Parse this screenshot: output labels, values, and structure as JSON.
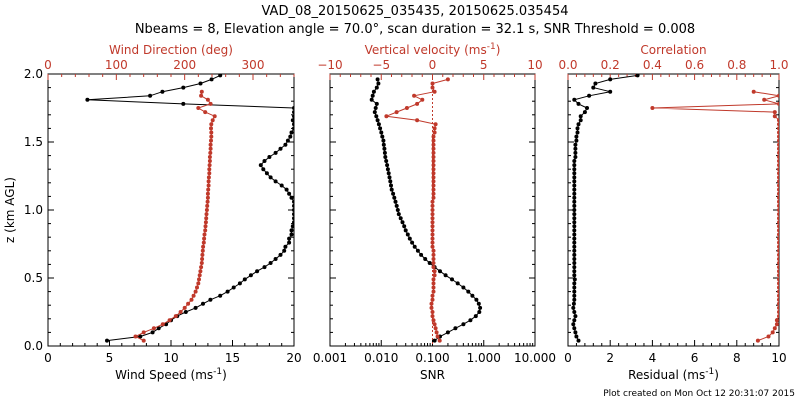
{
  "title": {
    "line1": "VAD_08_20150625_035435, 20150625.035454",
    "line2": "Nbeams = 8, Elevation angle = 70.0°, scan duration = 32.1 s, SNR Threshold = 0.008"
  },
  "footer": "Plot created on Mon Oct 12 20:31:07 2015",
  "colors": {
    "black": "#000000",
    "red": "#c0392b"
  },
  "chart_data": [
    {
      "type": "line",
      "ylabel": "z (km AGL)",
      "ylim": [
        0.0,
        2.0
      ],
      "yticks": [
        "0.0",
        "0.5",
        "1.0",
        "1.5",
        "2.0"
      ],
      "xlabel_bottom": "Wind Speed (ms",
      "xlabel_bottom_sup": "-1",
      "xlabel_bottom_end": ")",
      "xlim_bottom": [
        0,
        20
      ],
      "xticks_bottom": [
        "0",
        "5",
        "10",
        "15",
        "20"
      ],
      "xlabel_top": "Wind Direction (deg)",
      "xlim_top": [
        0,
        360
      ],
      "xticks_top": [
        "0",
        "100",
        "200",
        "300"
      ],
      "series": [
        {
          "axis": "bottom",
          "color": "#000000",
          "z": [
            0.04,
            0.07,
            0.1,
            0.13,
            0.16,
            0.19,
            0.22,
            0.25,
            0.28,
            0.31,
            0.34,
            0.37,
            0.4,
            0.43,
            0.46,
            0.49,
            0.52,
            0.55,
            0.58,
            0.61,
            0.64,
            0.67,
            0.7,
            0.73,
            0.76,
            0.79,
            0.82,
            0.85,
            0.88,
            0.91,
            0.94,
            0.97,
            1.0,
            1.03,
            1.06,
            1.09,
            1.12,
            1.15,
            1.18,
            1.21,
            1.24,
            1.27,
            1.3,
            1.33,
            1.36,
            1.39,
            1.42,
            1.45,
            1.48,
            1.51,
            1.54,
            1.57,
            1.6,
            1.63,
            1.66,
            1.69,
            1.72,
            1.75,
            1.78,
            1.81,
            1.84,
            1.87,
            1.9,
            1.93,
            1.96,
            1.99
          ],
          "values": [
            4.8,
            7.5,
            8.5,
            9.0,
            9.6,
            10.0,
            10.5,
            11.2,
            12.0,
            12.6,
            13.2,
            14.0,
            14.6,
            15.1,
            15.6,
            16.0,
            16.5,
            17.0,
            17.6,
            18.1,
            18.5,
            18.9,
            19.2,
            19.3,
            19.6,
            19.6,
            19.8,
            19.8,
            19.9,
            20.0,
            20.0,
            20.0,
            20.0,
            20.0,
            20.0,
            19.8,
            19.6,
            19.4,
            19.0,
            18.5,
            18.1,
            17.8,
            17.5,
            17.3,
            17.6,
            18.0,
            18.5,
            18.9,
            19.3,
            19.5,
            19.7,
            19.8,
            20.0,
            20.0,
            19.9,
            20.0,
            20.0,
            20.0,
            11.0,
            3.2,
            8.3,
            9.3,
            11.0,
            12.4,
            13.3,
            14.0
          ]
        },
        {
          "axis": "top",
          "color": "#c0392b",
          "z": [
            0.04,
            0.07,
            0.1,
            0.13,
            0.16,
            0.19,
            0.22,
            0.25,
            0.28,
            0.31,
            0.34,
            0.37,
            0.4,
            0.43,
            0.46,
            0.49,
            0.52,
            0.55,
            0.58,
            0.61,
            0.64,
            0.67,
            0.7,
            0.73,
            0.76,
            0.79,
            0.82,
            0.85,
            0.88,
            0.91,
            0.94,
            0.97,
            1.0,
            1.03,
            1.06,
            1.09,
            1.12,
            1.15,
            1.18,
            1.21,
            1.24,
            1.27,
            1.3,
            1.33,
            1.36,
            1.39,
            1.42,
            1.45,
            1.48,
            1.51,
            1.54,
            1.57,
            1.6,
            1.63,
            1.66,
            1.69,
            1.72,
            1.75,
            1.78,
            1.81,
            1.84,
            1.87
          ],
          "values": [
            140,
            128,
            140,
            155,
            168,
            178,
            187,
            194,
            200,
            205,
            210,
            213,
            216,
            218,
            220,
            221,
            222,
            223,
            224,
            225,
            225.5,
            226,
            226.5,
            227,
            228,
            228.5,
            229,
            230,
            230.5,
            231,
            231.5,
            232,
            232.5,
            233,
            233.5,
            234,
            234,
            234.5,
            235,
            235,
            235.5,
            236,
            236,
            236.5,
            237,
            237,
            237.5,
            238,
            238,
            238.5,
            239,
            239,
            238.5,
            239,
            241,
            244,
            230,
            220,
            238,
            234,
            224,
            225
          ]
        }
      ]
    },
    {
      "type": "line",
      "xlabel_bottom": "SNR",
      "xscale_bottom": "log",
      "xlim_bottom": [
        0.001,
        10.0
      ],
      "xticks_bottom": [
        "0.001",
        "0.010",
        "0.100",
        "1.000",
        "10.000"
      ],
      "xlabel_top": "Vertical velocity (ms",
      "xlabel_top_sup": "-1",
      "xlabel_top_end": ")",
      "xlim_top": [
        -10,
        10
      ],
      "xticks_top": [
        "−10",
        "−5",
        "0",
        "5",
        "10"
      ],
      "zero_line": 0,
      "ylim": [
        0.0,
        2.0
      ],
      "series": [
        {
          "axis": "bottom",
          "color": "#000000",
          "z": [
            0.04,
            0.07,
            0.1,
            0.13,
            0.16,
            0.19,
            0.22,
            0.25,
            0.28,
            0.31,
            0.34,
            0.37,
            0.4,
            0.43,
            0.46,
            0.49,
            0.52,
            0.55,
            0.58,
            0.61,
            0.64,
            0.67,
            0.7,
            0.73,
            0.76,
            0.79,
            0.82,
            0.85,
            0.88,
            0.91,
            0.94,
            0.97,
            1.0,
            1.03,
            1.06,
            1.09,
            1.12,
            1.15,
            1.18,
            1.21,
            1.24,
            1.27,
            1.3,
            1.33,
            1.36,
            1.39,
            1.42,
            1.45,
            1.48,
            1.51,
            1.54,
            1.57,
            1.6,
            1.63,
            1.66,
            1.69,
            1.72,
            1.75,
            1.78,
            1.81,
            1.84,
            1.87,
            1.9,
            1.93,
            1.96
          ],
          "values": [
            0.11,
            0.14,
            0.2,
            0.28,
            0.4,
            0.55,
            0.7,
            0.82,
            0.85,
            0.8,
            0.72,
            0.6,
            0.5,
            0.4,
            0.31,
            0.24,
            0.18,
            0.14,
            0.11,
            0.088,
            0.072,
            0.06,
            0.052,
            0.045,
            0.04,
            0.036,
            0.033,
            0.03,
            0.028,
            0.026,
            0.024,
            0.022,
            0.021,
            0.02,
            0.019,
            0.018,
            0.017,
            0.016,
            0.0155,
            0.015,
            0.0145,
            0.014,
            0.0135,
            0.013,
            0.0125,
            0.012,
            0.0118,
            0.0115,
            0.0112,
            0.011,
            0.0105,
            0.01,
            0.0095,
            0.009,
            0.0085,
            0.008,
            0.0075,
            0.0078,
            0.0082,
            0.0065,
            0.0068,
            0.0072,
            0.0082,
            0.0088,
            0.0085
          ]
        },
        {
          "axis": "top",
          "color": "#c0392b",
          "z": [
            0.04,
            0.07,
            0.1,
            0.13,
            0.16,
            0.19,
            0.22,
            0.25,
            0.28,
            0.31,
            0.34,
            0.37,
            0.4,
            0.43,
            0.46,
            0.49,
            0.52,
            0.55,
            0.58,
            0.61,
            0.64,
            0.67,
            0.7,
            0.73,
            0.76,
            0.79,
            0.82,
            0.85,
            0.88,
            0.91,
            0.94,
            0.97,
            1.0,
            1.03,
            1.06,
            1.09,
            1.12,
            1.15,
            1.18,
            1.21,
            1.24,
            1.27,
            1.3,
            1.33,
            1.36,
            1.39,
            1.42,
            1.45,
            1.48,
            1.51,
            1.54,
            1.57,
            1.6,
            1.63,
            1.66,
            1.69,
            1.72,
            1.75,
            1.78,
            1.81,
            1.84,
            1.87,
            1.9,
            1.93,
            1.96
          ],
          "values": [
            0.7,
            0.5,
            0.4,
            0.3,
            0.2,
            0.1,
            0.0,
            0.0,
            -0.1,
            -0.1,
            0.0,
            0.0,
            0.1,
            0.1,
            0.1,
            0.1,
            0.2,
            0.2,
            0.1,
            0.1,
            0.1,
            0.1,
            0.1,
            0.0,
            0.0,
            0.0,
            0.0,
            0.0,
            0.0,
            0.0,
            0.0,
            0.0,
            0.0,
            0.0,
            0.0,
            0.1,
            0.1,
            0.1,
            0.1,
            0.1,
            0.1,
            0.1,
            0.1,
            0.1,
            0.1,
            0.1,
            0.1,
            0.1,
            0.1,
            0.1,
            0.1,
            0.2,
            0.2,
            0.3,
            -1.5,
            -4.5,
            -3.5,
            -2.5,
            -1.5,
            -1.0,
            -1.8,
            0.2,
            0.0,
            0.0,
            1.5
          ]
        }
      ]
    },
    {
      "type": "line",
      "xlabel_bottom": "Residual (ms",
      "xlabel_bottom_sup": "-1",
      "xlabel_bottom_end": ")",
      "xlim_bottom": [
        0,
        10
      ],
      "xticks_bottom": [
        "0",
        "2",
        "4",
        "6",
        "8",
        "10"
      ],
      "xlabel_top": "Correlation",
      "xlim_top": [
        0.0,
        1.0
      ],
      "xticks_top": [
        "0.0",
        "0.2",
        "0.4",
        "0.6",
        "0.8",
        "1.0"
      ],
      "ylim": [
        0.0,
        2.0
      ],
      "series": [
        {
          "axis": "bottom",
          "color": "#000000",
          "z": [
            0.04,
            0.07,
            0.1,
            0.13,
            0.16,
            0.19,
            0.22,
            0.25,
            0.28,
            0.31,
            0.34,
            0.37,
            0.4,
            0.43,
            0.46,
            0.49,
            0.52,
            0.55,
            0.58,
            0.61,
            0.64,
            0.67,
            0.7,
            0.73,
            0.76,
            0.79,
            0.82,
            0.85,
            0.88,
            0.91,
            0.94,
            0.97,
            1.0,
            1.03,
            1.06,
            1.09,
            1.12,
            1.15,
            1.18,
            1.21,
            1.24,
            1.27,
            1.3,
            1.33,
            1.36,
            1.39,
            1.42,
            1.45,
            1.48,
            1.51,
            1.54,
            1.57,
            1.6,
            1.63,
            1.66,
            1.69,
            1.72,
            1.75,
            1.78,
            1.81,
            1.84,
            1.87,
            1.9,
            1.93,
            1.96,
            1.99
          ],
          "values": [
            0.5,
            0.4,
            0.35,
            0.3,
            0.25,
            0.3,
            0.35,
            0.3,
            0.25,
            0.28,
            0.3,
            0.3,
            0.3,
            0.3,
            0.3,
            0.32,
            0.3,
            0.3,
            0.3,
            0.3,
            0.3,
            0.3,
            0.3,
            0.3,
            0.3,
            0.3,
            0.3,
            0.3,
            0.3,
            0.3,
            0.3,
            0.3,
            0.3,
            0.3,
            0.3,
            0.3,
            0.3,
            0.3,
            0.3,
            0.3,
            0.3,
            0.3,
            0.3,
            0.3,
            0.3,
            0.35,
            0.35,
            0.35,
            0.35,
            0.4,
            0.4,
            0.45,
            0.45,
            0.5,
            0.6,
            0.6,
            0.8,
            0.9,
            0.5,
            0.3,
            1.0,
            2.0,
            1.2,
            1.3,
            2.0,
            3.3
          ]
        },
        {
          "axis": "top",
          "color": "#c0392b",
          "z": [
            0.04,
            0.07,
            0.1,
            0.13,
            0.16,
            0.19,
            0.22,
            0.25,
            0.28,
            0.31,
            0.34,
            0.37,
            0.4,
            0.43,
            0.46,
            0.49,
            0.52,
            0.55,
            0.58,
            0.61,
            0.64,
            0.67,
            0.7,
            0.73,
            0.76,
            0.79,
            0.82,
            0.85,
            0.88,
            0.91,
            0.94,
            0.97,
            1.0,
            1.03,
            1.06,
            1.09,
            1.12,
            1.15,
            1.18,
            1.21,
            1.24,
            1.27,
            1.3,
            1.33,
            1.36,
            1.39,
            1.42,
            1.45,
            1.48,
            1.51,
            1.54,
            1.57,
            1.6,
            1.63,
            1.66,
            1.69,
            1.72,
            1.75,
            1.78,
            1.81,
            1.84,
            1.87
          ],
          "values": [
            0.9,
            0.95,
            0.97,
            0.98,
            0.99,
            0.99,
            1.0,
            1.0,
            1.0,
            1.0,
            1.0,
            1.0,
            1.0,
            1.0,
            1.0,
            1.0,
            1.0,
            1.0,
            1.0,
            1.0,
            1.0,
            1.0,
            1.0,
            1.0,
            1.0,
            1.0,
            1.0,
            1.0,
            1.0,
            1.0,
            1.0,
            1.0,
            1.0,
            1.0,
            1.0,
            1.0,
            1.0,
            1.0,
            1.0,
            1.0,
            1.0,
            1.0,
            1.0,
            1.0,
            1.0,
            1.0,
            1.0,
            1.0,
            1.0,
            1.0,
            1.0,
            1.0,
            1.0,
            1.0,
            1.0,
            0.98,
            0.98,
            0.4,
            1.0,
            0.93,
            1.0,
            0.88
          ]
        }
      ]
    }
  ]
}
